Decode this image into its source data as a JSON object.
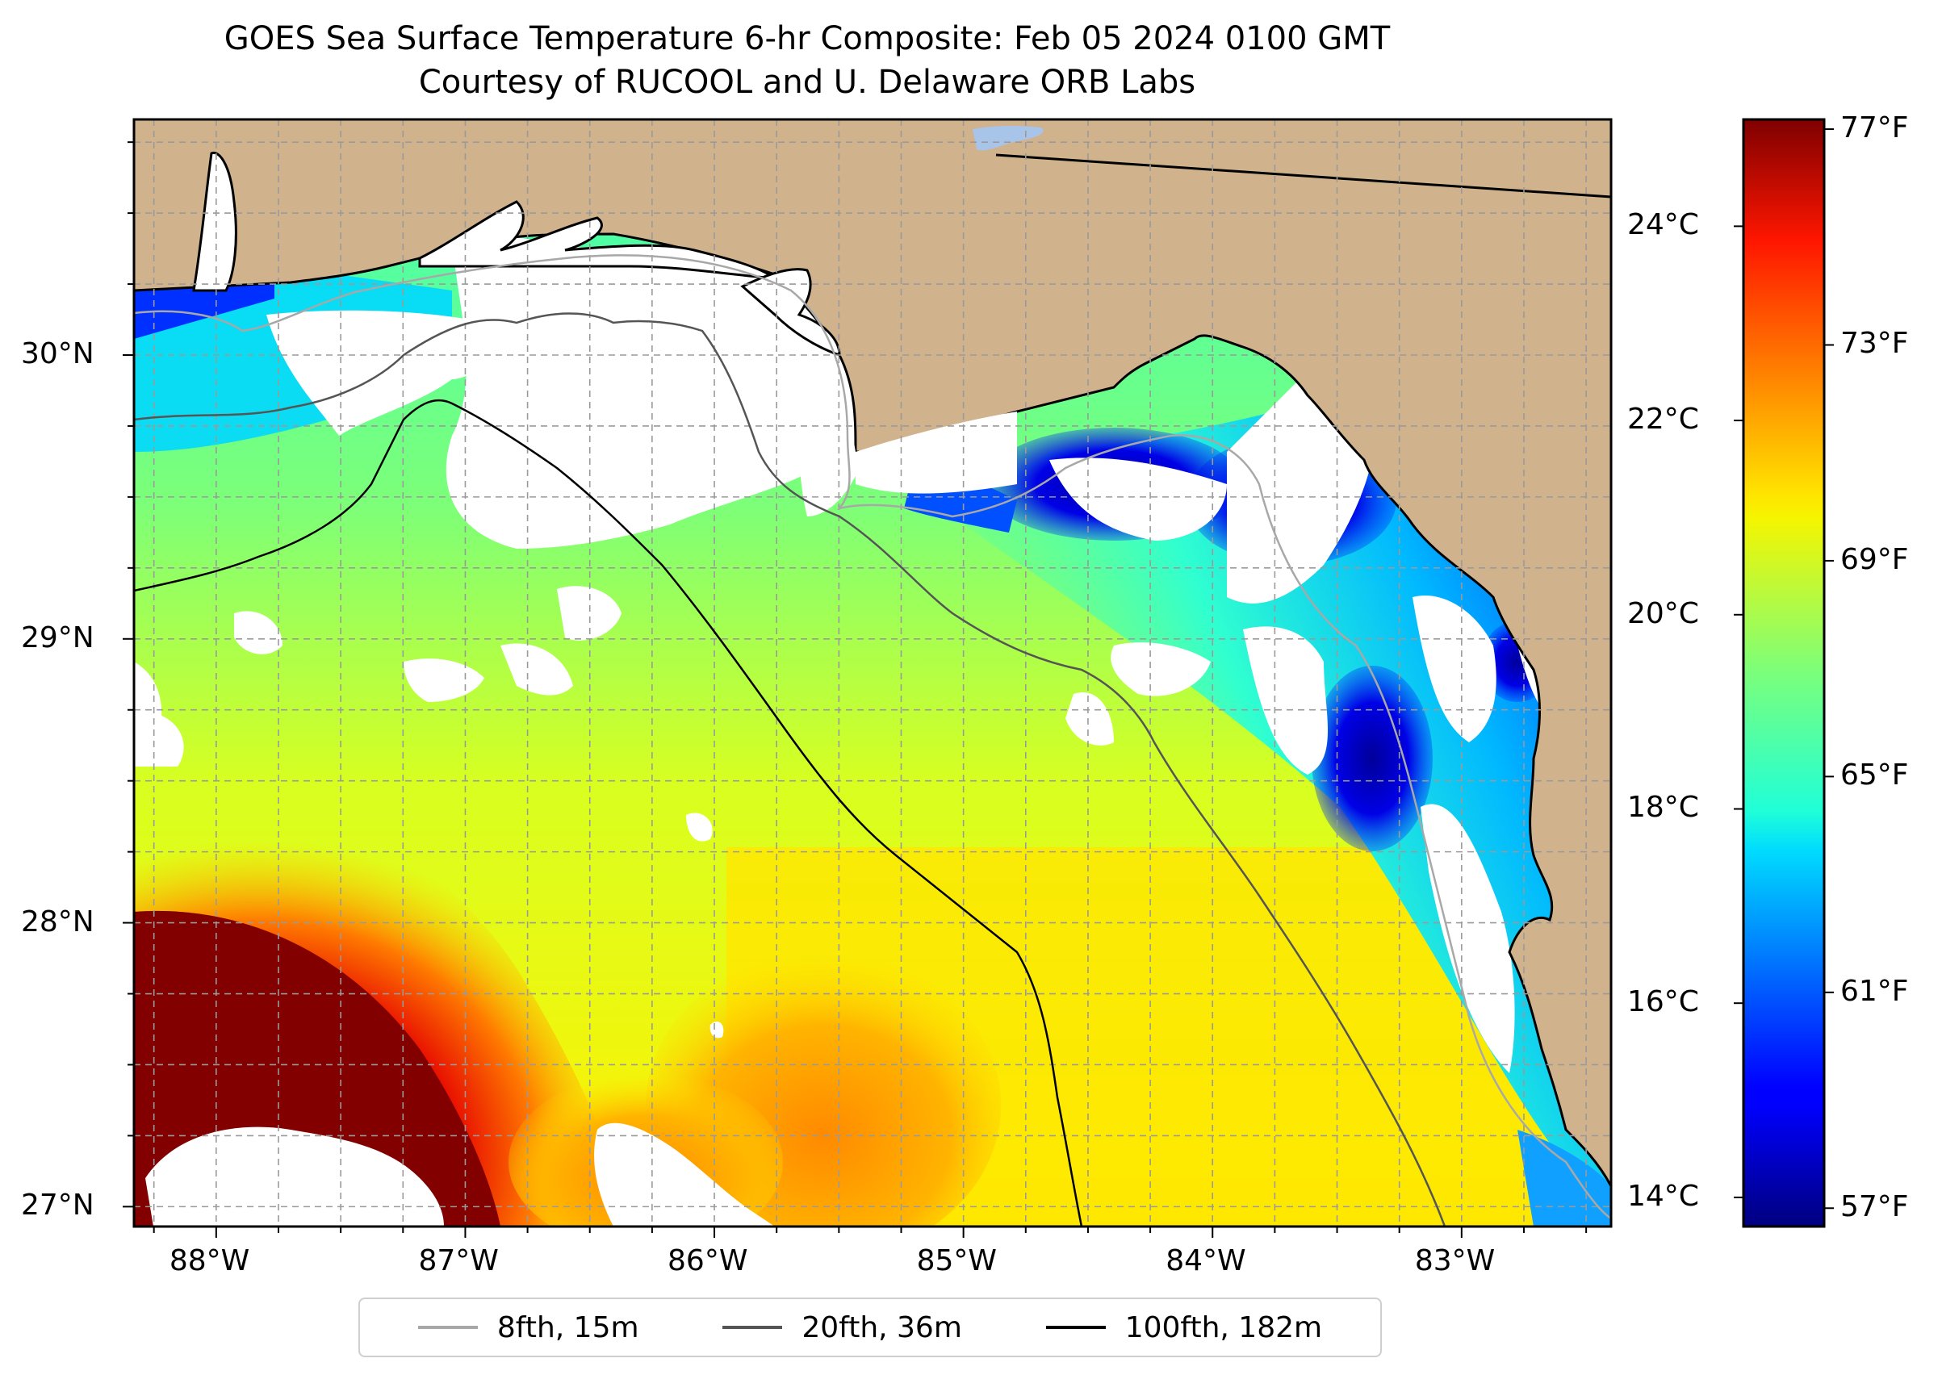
{
  "title": {
    "line1": "GOES Sea Surface Temperature 6-hr Composite: Feb 05 2024 0100 GMT",
    "line2": "Courtesy of RUCOOL and U. Delaware ORB Labs"
  },
  "map": {
    "extent": {
      "lon_min": -88.33,
      "lon_max": -82.4,
      "lat_min": 26.93,
      "lat_max": 30.83
    },
    "lon_ticks": [
      {
        "value": -88,
        "label": "88°W"
      },
      {
        "value": -87,
        "label": "87°W"
      },
      {
        "value": -86,
        "label": "86°W"
      },
      {
        "value": -85,
        "label": "85°W"
      },
      {
        "value": -84,
        "label": "84°W"
      },
      {
        "value": -83,
        "label": "83°W"
      }
    ],
    "lat_ticks": [
      {
        "value": 30,
        "label": "30°N"
      },
      {
        "value": 29,
        "label": "29°N"
      },
      {
        "value": 28,
        "label": "28°N"
      },
      {
        "value": 27,
        "label": "27°N"
      }
    ],
    "colors": {
      "land": "#d0b28c",
      "no_data": "#ffffff",
      "grid": "#9a9a9a"
    }
  },
  "colorbar": {
    "colormap": "jet",
    "range_celsius": [
      13.7,
      25.1
    ],
    "celsius_ticks": [
      {
        "value": 24,
        "label": "24°C"
      },
      {
        "value": 22,
        "label": "22°C"
      },
      {
        "value": 20,
        "label": "20°C"
      },
      {
        "value": 18,
        "label": "18°C"
      },
      {
        "value": 16,
        "label": "16°C"
      },
      {
        "value": 14,
        "label": "14°C"
      }
    ],
    "fahrenheit_ticks": [
      {
        "value": 77,
        "label": "77°F"
      },
      {
        "value": 73,
        "label": "73°F"
      },
      {
        "value": 69,
        "label": "69°F"
      },
      {
        "value": 65,
        "label": "65°F"
      },
      {
        "value": 61,
        "label": "61°F"
      },
      {
        "value": 57,
        "label": "57°F"
      }
    ]
  },
  "legend": {
    "items": [
      {
        "label": "8fth, 15m",
        "color": "#a8a8a8"
      },
      {
        "label": "20fth, 36m",
        "color": "#555555"
      },
      {
        "label": "100fth, 182m",
        "color": "#000000"
      }
    ]
  }
}
